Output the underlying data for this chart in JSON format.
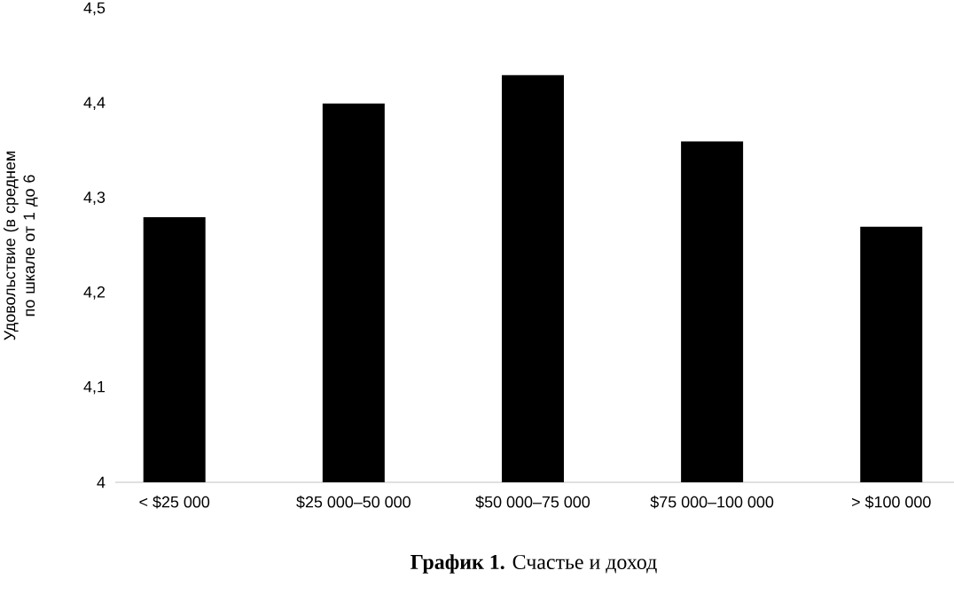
{
  "chart_data": {
    "type": "bar",
    "title": "**График 1.** Счастье и доход",
    "ylabel": "Удовольствие (в среднем по шкале от 1 до 6",
    "categories": [
      "< $25 000",
      "$25 000–50 000",
      "$50 000–75 000",
      "$75 000–100 000",
      "> $100 000"
    ],
    "values": [
      4.28,
      4.4,
      4.43,
      4.36,
      4.27
    ],
    "color": "#000000",
    "ylim": [
      4,
      4.5
    ],
    "yticks": [
      4,
      {
        "value": 4.1,
        "label": "4,1"
      },
      {
        "value": 4.2,
        "label": "4,2"
      },
      {
        "value": 4.3,
        "label": "4,3"
      },
      {
        "value": 4.4,
        "label": "4,4"
      },
      {
        "value": 4.5,
        "label": "4,5"
      }
    ]
  }
}
